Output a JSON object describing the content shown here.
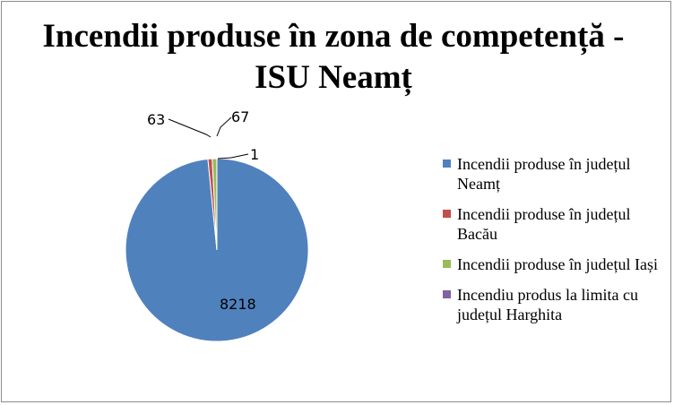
{
  "chart_data": {
    "type": "pie",
    "title": "Incendii produse în zona de competență - ISU Neamț",
    "slices": [
      {
        "name": "Incendii produse în județul Neamț",
        "value": 8218,
        "label": "8218",
        "color": "#4f81bd"
      },
      {
        "name": "Incendii produse în județul Bacău",
        "value": 63,
        "label": "63",
        "color": "#c0504d"
      },
      {
        "name": "Incendii produse în județul Iași",
        "value": 67,
        "label": "67",
        "color": "#9bbb59"
      },
      {
        "name": "Incendiu produs la limita cu județul Harghita",
        "value": 1,
        "label": "1",
        "color": "#8064a2"
      }
    ],
    "legend_position": "right"
  }
}
